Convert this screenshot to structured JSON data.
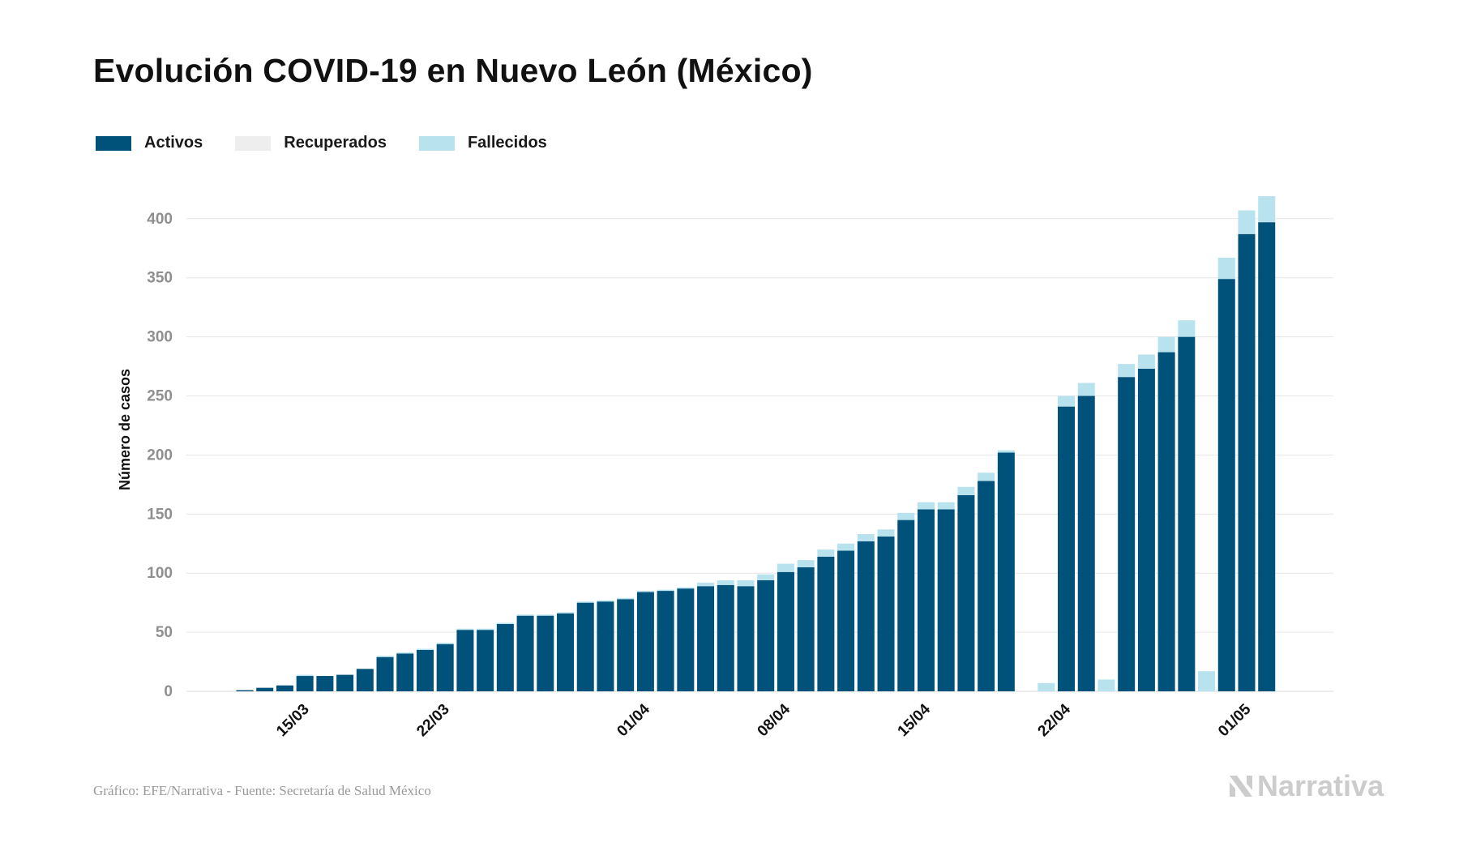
{
  "title": "Evolución COVID-19 en Nuevo León (México)",
  "legend": [
    {
      "label": "Activos",
      "color": "#00527a"
    },
    {
      "label": "Recuperados",
      "color": "#eeeeee"
    },
    {
      "label": "Fallecidos",
      "color": "#b7e2ee"
    }
  ],
  "footer": "Gráfico: EFE/Narrativa - Fuente: Secretaría de Salud México",
  "brand": "Narrativa",
  "chart_data": {
    "type": "bar",
    "stacked": true,
    "ylabel": "Número de casos",
    "xlabel": "",
    "ylim": [
      0,
      430
    ],
    "yticks": [
      0,
      50,
      100,
      150,
      200,
      250,
      300,
      350,
      400
    ],
    "grid": true,
    "legend_position": "top-left",
    "categories": [
      "12/03",
      "13/03",
      "14/03",
      "15/03",
      "16/03",
      "17/03",
      "18/03",
      "19/03",
      "20/03",
      "21/03",
      "22/03",
      "23/03",
      "24/03",
      "25/03",
      "26/03",
      "27/03",
      "28/03",
      "29/03",
      "30/03",
      "31/03",
      "01/04",
      "02/04",
      "03/04",
      "04/04",
      "05/04",
      "06/04",
      "07/04",
      "08/04",
      "09/04",
      "10/04",
      "11/04",
      "12/04",
      "13/04",
      "14/04",
      "15/04",
      "16/04",
      "17/04",
      "18/04",
      "19/04",
      "20/04",
      "21/04",
      "22/04",
      "23/04",
      "24/04",
      "25/04",
      "26/04",
      "27/04",
      "28/04",
      "29/04",
      "30/04",
      "01/05",
      "02/05",
      "03/05"
    ],
    "x_tick_labels": [
      {
        "label": "15/03",
        "category": "15/03"
      },
      {
        "label": "22/03",
        "category": "22/03"
      },
      {
        "label": "01/04",
        "category": "01/04"
      },
      {
        "label": "08/04",
        "category": "08/04"
      },
      {
        "label": "15/04",
        "category": "15/04"
      },
      {
        "label": "22/04",
        "category": "22/04"
      },
      {
        "label": "01/05",
        "category": "01/05"
      }
    ],
    "series": [
      {
        "name": "Activos",
        "color": "#00527a",
        "values": [
          1,
          3,
          5,
          13,
          13,
          14,
          19,
          29,
          32,
          35,
          40,
          52,
          52,
          57,
          64,
          64,
          66,
          75,
          76,
          78,
          84,
          85,
          87,
          89,
          90,
          89,
          94,
          101,
          105,
          114,
          119,
          127,
          131,
          145,
          154,
          154,
          166,
          178,
          202,
          0,
          0,
          241,
          250,
          0,
          266,
          273,
          287,
          300,
          0,
          349,
          387,
          397,
          0
        ]
      },
      {
        "name": "Recuperados",
        "color": "#eeeeee",
        "values": [
          0,
          0,
          0,
          0,
          0,
          0,
          0,
          0,
          0,
          0,
          0,
          0,
          0,
          0,
          0,
          0,
          0,
          0,
          0,
          0,
          0,
          0,
          0,
          0,
          0,
          0,
          0,
          0,
          0,
          0,
          0,
          0,
          0,
          0,
          0,
          0,
          0,
          0,
          0,
          0,
          0,
          0,
          0,
          0,
          0,
          0,
          0,
          0,
          0,
          0,
          0,
          0,
          0
        ]
      },
      {
        "name": "Fallecidos",
        "color": "#b7e2ee",
        "values": [
          0,
          0,
          0,
          1,
          0,
          0,
          0,
          1,
          1,
          1,
          1,
          1,
          1,
          1,
          1,
          1,
          1,
          1,
          1,
          1,
          1,
          1,
          1,
          3,
          4,
          5,
          5,
          7,
          6,
          6,
          6,
          6,
          6,
          6,
          6,
          6,
          7,
          7,
          2,
          0,
          7,
          9,
          11,
          10,
          11,
          12,
          13,
          14,
          17,
          18,
          20,
          22,
          0
        ]
      }
    ]
  }
}
